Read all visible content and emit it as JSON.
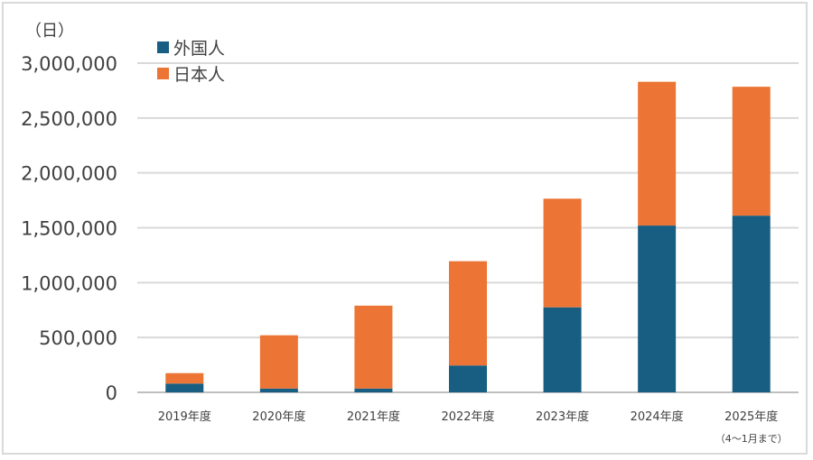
{
  "chart_data": {
    "type": "bar",
    "stacked": true,
    "y_unit": "（日）",
    "categories": [
      "2019年度",
      "2020年度",
      "2021年度",
      "2022年度",
      "2023年度",
      "2024年度",
      "2025年度"
    ],
    "category_notes": [
      "",
      "",
      "",
      "",
      "",
      "",
      "（4～1月まで）"
    ],
    "series": [
      {
        "name": "外国人",
        "color": "#175e82",
        "values": [
          80000,
          35000,
          35000,
          245000,
          775000,
          1520000,
          1610000
        ]
      },
      {
        "name": "日本人",
        "color": "#ec7434",
        "values": [
          95000,
          485000,
          755000,
          950000,
          990000,
          1310000,
          1175000
        ]
      }
    ],
    "ylim": [
      0,
      3000000
    ],
    "yticks": [
      0,
      500000,
      1000000,
      1500000,
      2000000,
      2500000,
      3000000
    ],
    "ytick_labels": [
      "0",
      "500,000",
      "1,000,000",
      "1,500,000",
      "2,000,000",
      "2,500,000",
      "3,000,000"
    ],
    "grid": true,
    "legend_position": "top-left"
  }
}
